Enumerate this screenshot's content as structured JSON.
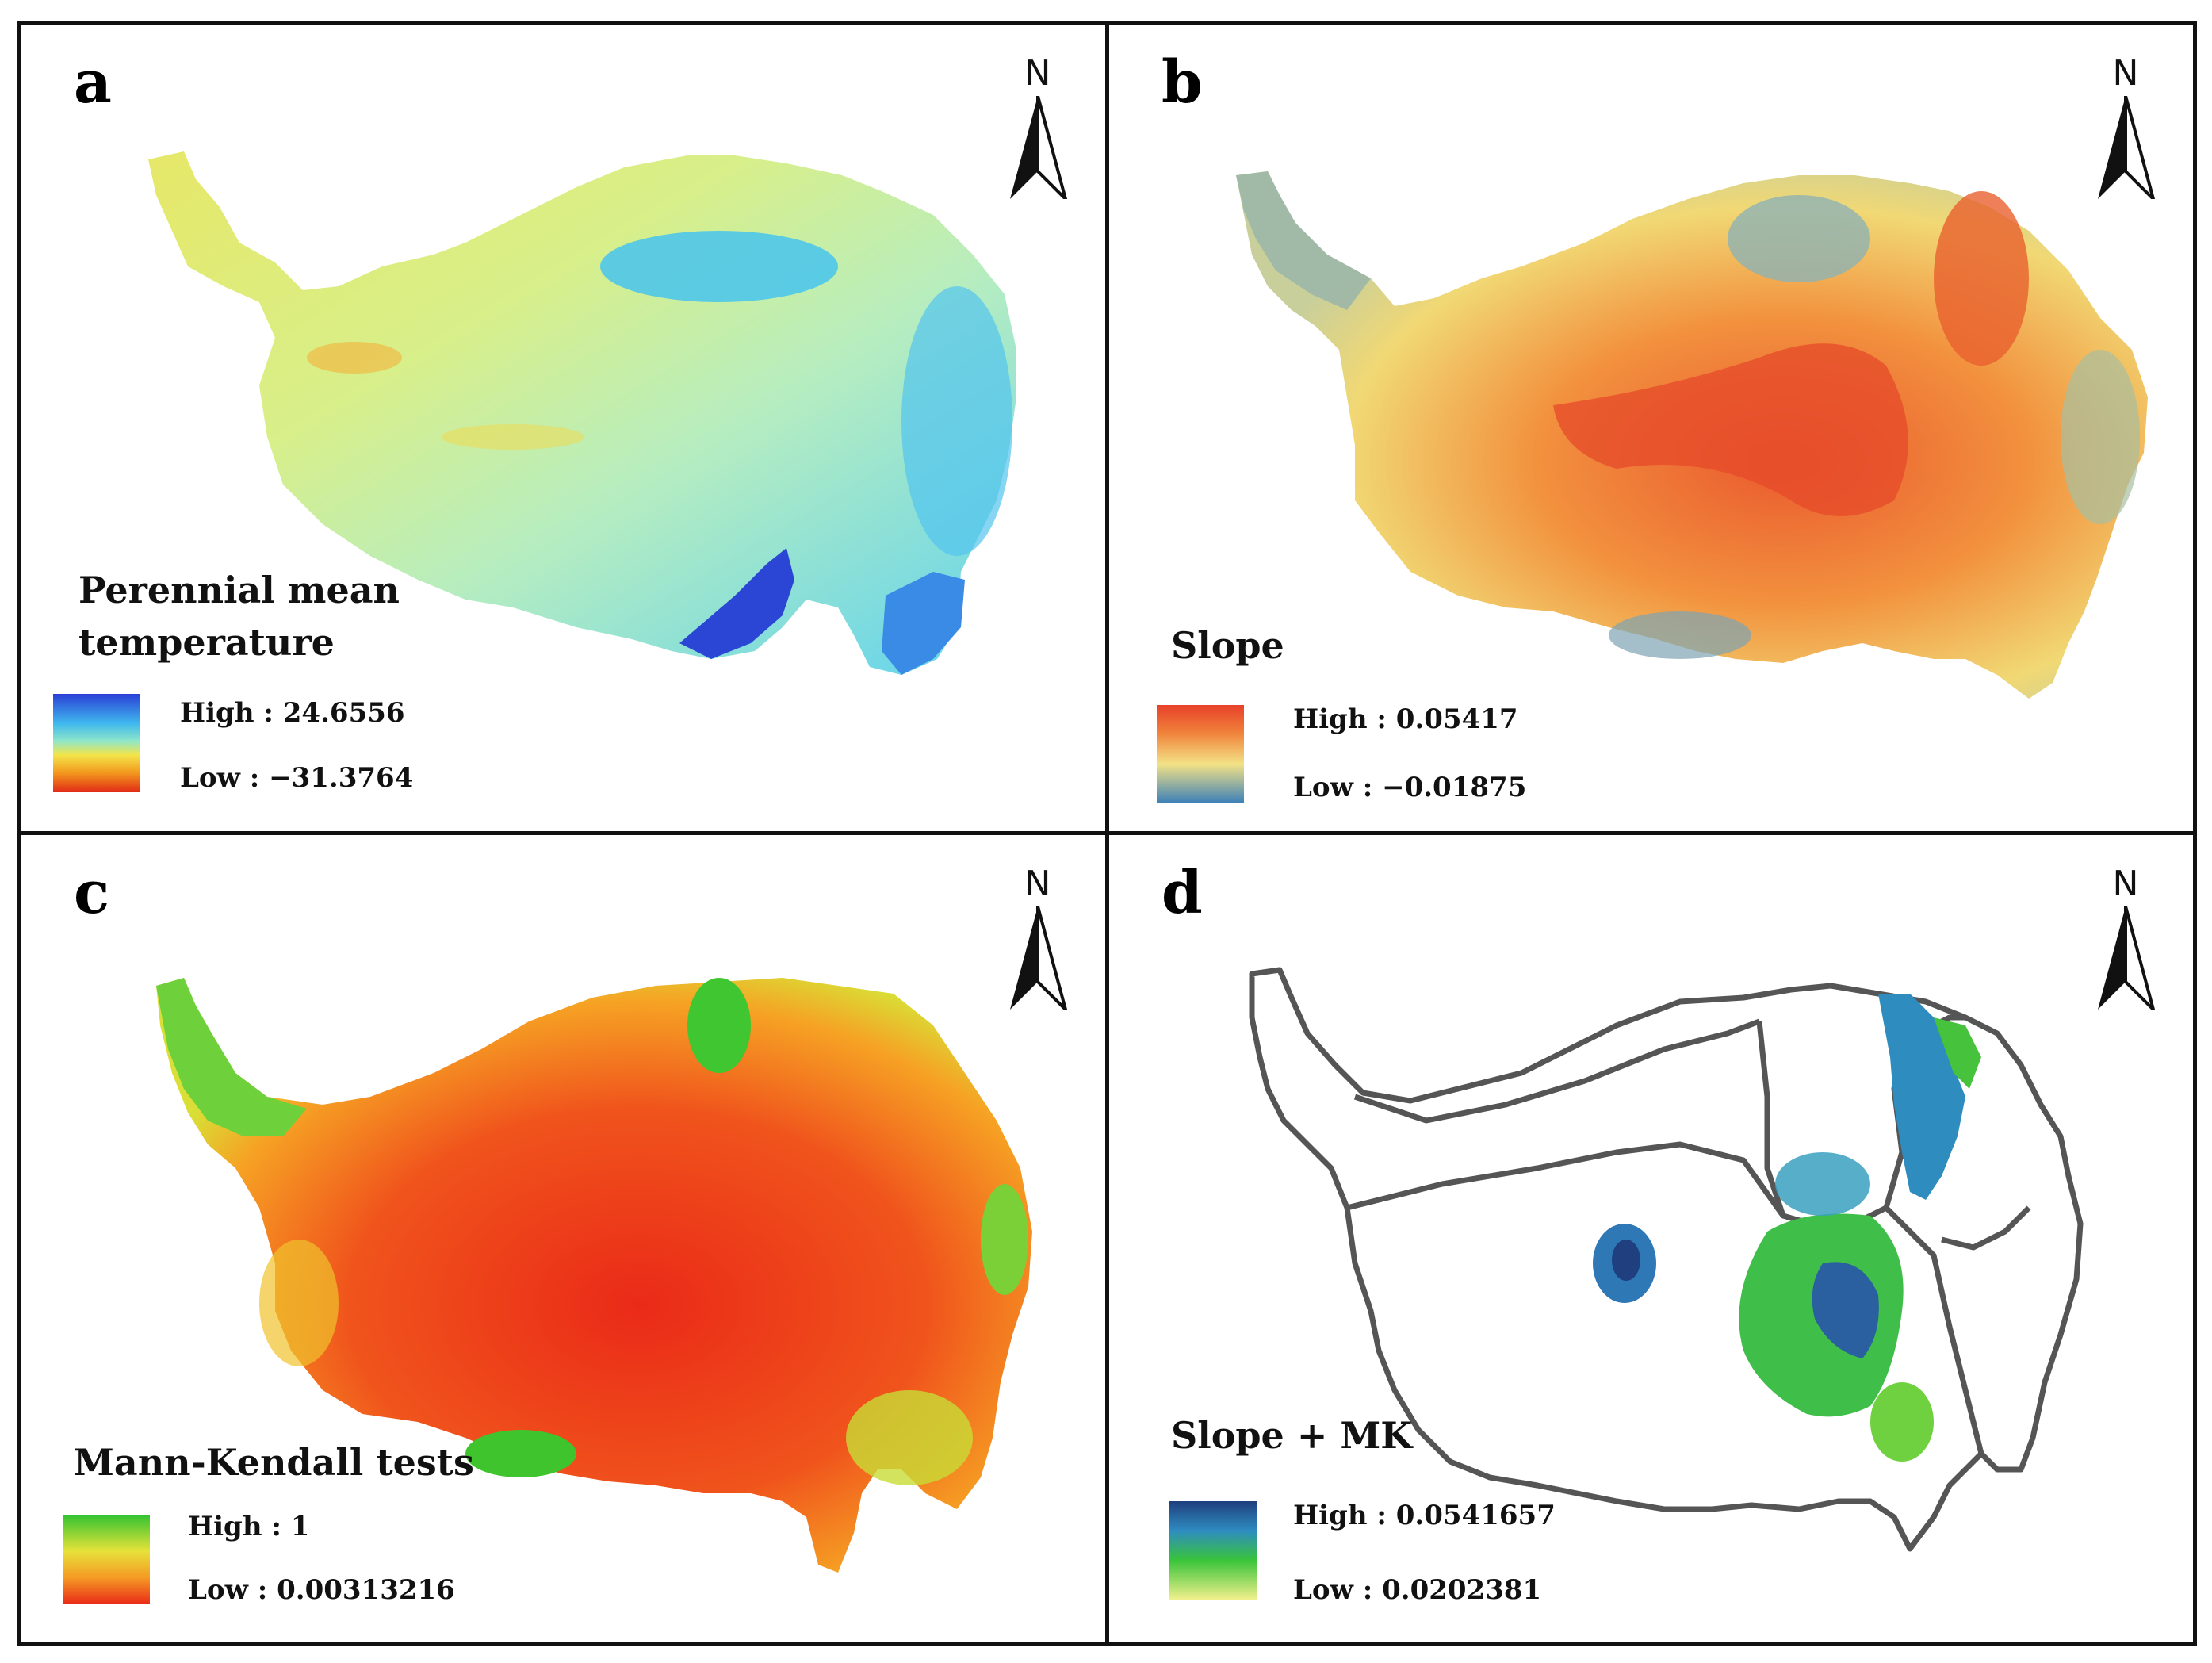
{
  "panels": {
    "a": {
      "letter": "a",
      "title_line1": "Perennial mean",
      "title_line2": "temperature",
      "legend_high": "High : 24.6556",
      "legend_low": "Low : −31.3764",
      "north": "N",
      "colors": [
        "#2a3fd6",
        "#3fb8ee",
        "#8fe7c9",
        "#f3e54a",
        "#f39a1e",
        "#e12a16"
      ]
    },
    "b": {
      "letter": "b",
      "title": "Slope",
      "legend_high": "High : 0.05417",
      "legend_low": "Low : −0.01875",
      "north": "N",
      "colors": [
        "#e8412a",
        "#f0813a",
        "#f3e286",
        "#3b7fb8"
      ]
    },
    "c": {
      "letter": "c",
      "title": "Mann-Kendall tests",
      "legend_high": "High : 1",
      "legend_low": "Low : 0.00313216",
      "north": "N",
      "colors": [
        "#36c432",
        "#e6e23a",
        "#f59a24",
        "#ea2a18"
      ]
    },
    "d": {
      "letter": "d",
      "title": "Slope + MK",
      "legend_high": "High : 0.0541657",
      "legend_low": "Low : 0.0202381",
      "north": "N",
      "colors": [
        "#1f3f7e",
        "#2e8cc0",
        "#39c33a",
        "#f1f08c"
      ]
    }
  }
}
